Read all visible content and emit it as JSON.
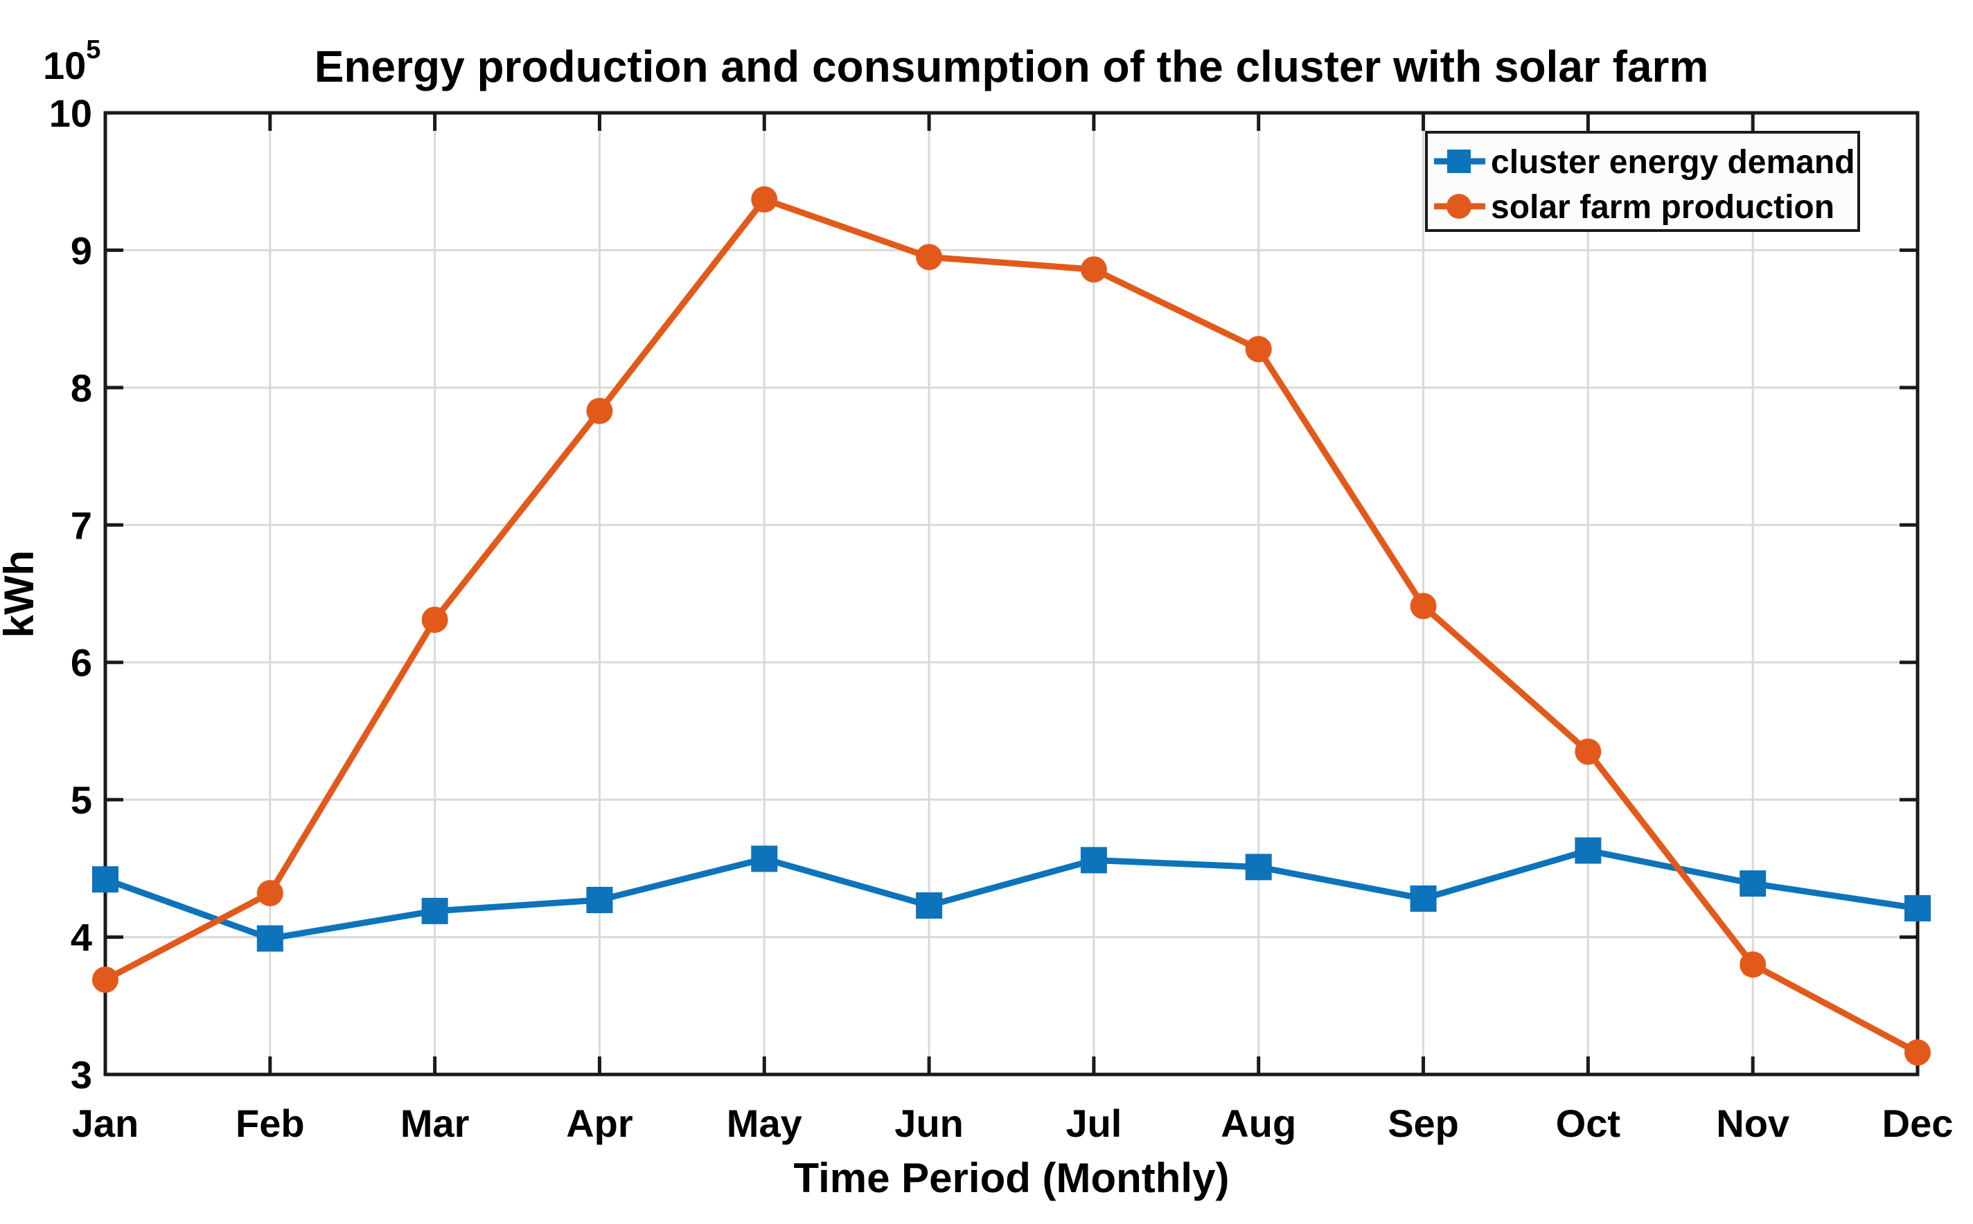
{
  "chart_data": {
    "type": "line",
    "title": "Energy production and consumption of the cluster with solar farm",
    "xlabel": "Time Period (Monthly)",
    "ylabel": "kWh",
    "offset_base": "10",
    "offset_exp": "5",
    "categories": [
      "Jan",
      "Feb",
      "Mar",
      "Apr",
      "May",
      "Jun",
      "Jul",
      "Aug",
      "Sep",
      "Oct",
      "Nov",
      "Dec"
    ],
    "yticks": [
      3,
      4,
      5,
      6,
      7,
      8,
      9,
      10
    ],
    "ylim": [
      3,
      10
    ],
    "grid": true,
    "legend_position": "top-right",
    "series": [
      {
        "name": "cluster energy demand",
        "color": "#0D73BB",
        "marker": "square",
        "values": [
          4.42,
          3.99,
          4.19,
          4.27,
          4.57,
          4.23,
          4.56,
          4.51,
          4.28,
          4.63,
          4.39,
          4.21
        ]
      },
      {
        "name": "solar farm production",
        "color": "#E25A1B",
        "marker": "circle",
        "values": [
          3.69,
          4.32,
          6.31,
          7.83,
          9.37,
          8.95,
          8.86,
          8.28,
          6.41,
          5.35,
          3.8,
          3.16
        ]
      }
    ]
  },
  "colors": {
    "grid": "#D9D9D9",
    "axis": "#1A1A1A",
    "text": "#000000",
    "background": "#FFFFFF",
    "legend_background": "#FCFCFC",
    "legend_border": "#1A1A1A"
  }
}
